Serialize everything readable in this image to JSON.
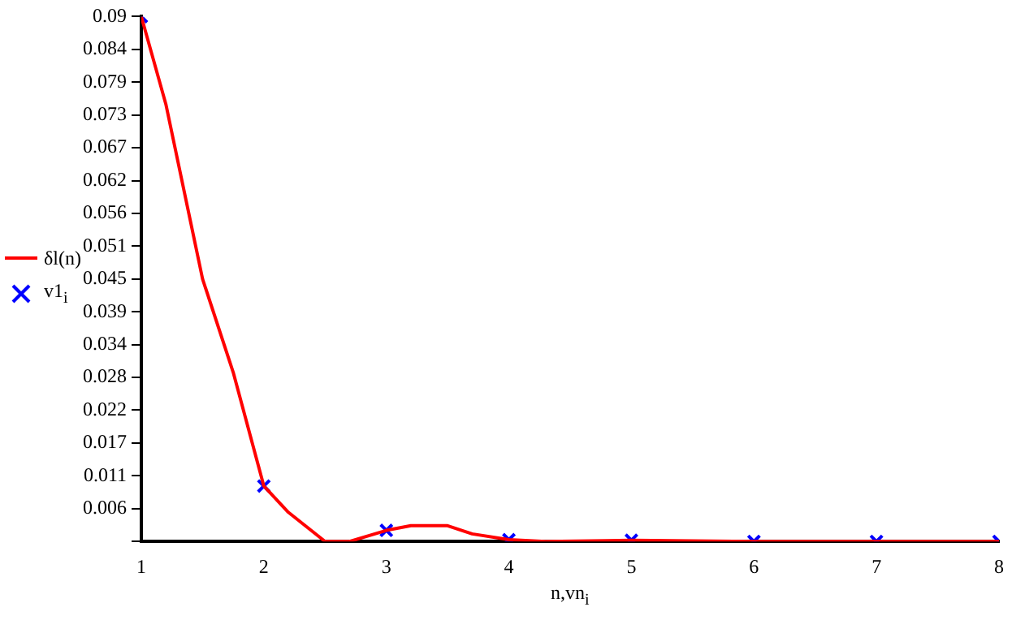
{
  "chart_data": {
    "type": "line",
    "xlabel": "n,vn$_{i}$",
    "xlim": [
      1,
      8
    ],
    "xticks": [
      1,
      2,
      3,
      4,
      5,
      6,
      7,
      8
    ],
    "ylim": [
      0,
      0.09
    ],
    "yticks": [
      {
        "value": 0,
        "label": null
      },
      {
        "value": 0.005625,
        "label": "0.006"
      },
      {
        "value": 0.01125,
        "label": "0.011"
      },
      {
        "value": 0.016875,
        "label": "0.017"
      },
      {
        "value": 0.0225,
        "label": "0.022"
      },
      {
        "value": 0.028125,
        "label": "0.028"
      },
      {
        "value": 0.03375,
        "label": "0.034"
      },
      {
        "value": 0.039375,
        "label": "0.039"
      },
      {
        "value": 0.045,
        "label": "0.045"
      },
      {
        "value": 0.050625,
        "label": "0.051"
      },
      {
        "value": 0.05625,
        "label": "0.056"
      },
      {
        "value": 0.061875,
        "label": "0.062"
      },
      {
        "value": 0.0675,
        "label": "0.067"
      },
      {
        "value": 0.073125,
        "label": "0.073"
      },
      {
        "value": 0.07875,
        "label": "0.079"
      },
      {
        "value": 0.084375,
        "label": "0.084"
      },
      {
        "value": 0.09,
        "label": "0.09"
      }
    ],
    "grid": false,
    "legend": "left",
    "series": [
      {
        "name": "δl(n)",
        "color": "#ff0000",
        "marker": "none",
        "line_style": "solid",
        "x": [
          1,
          1.2,
          1.5,
          1.75,
          2,
          2.2,
          2.5,
          2.7,
          3,
          3.2,
          3.5,
          3.7,
          4,
          4.3,
          5,
          6,
          7,
          8
        ],
        "values": [
          0.09,
          0.075,
          0.045,
          0.029,
          0.0095,
          0.005,
          0,
          0,
          0.0019,
          0.0027,
          0.0027,
          0.0013,
          0.0003,
          0,
          0.0002,
          0,
          0,
          0
        ]
      },
      {
        "name": "v1$_{i}$",
        "type": "scatter",
        "color": "#0000ff",
        "marker": "cross",
        "x": [
          1,
          2,
          3,
          4,
          5,
          6,
          7,
          8
        ],
        "values": [
          0.09,
          0.0095,
          0.0019,
          0.0003,
          0.0002,
          0,
          0,
          0
        ]
      }
    ]
  }
}
